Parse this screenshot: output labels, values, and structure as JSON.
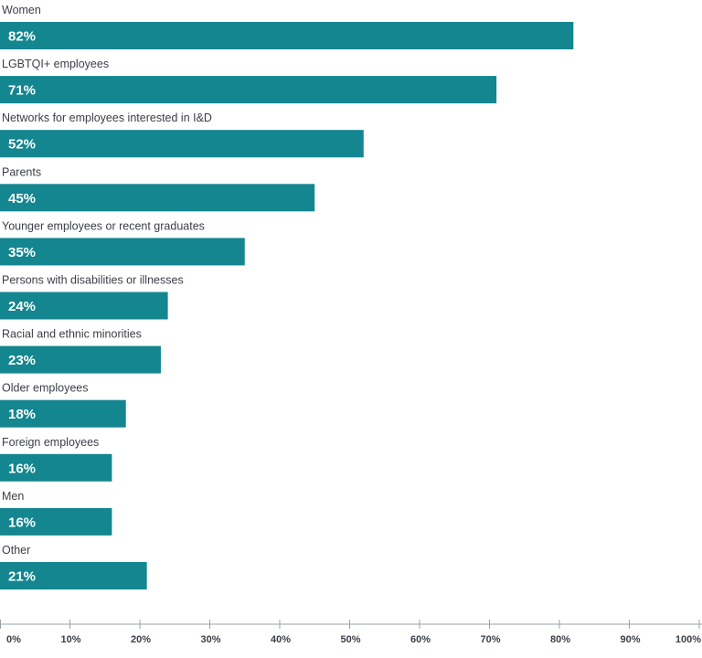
{
  "chart_data": {
    "type": "bar",
    "orientation": "horizontal",
    "categories": [
      "Women",
      "LGBTQI+ employees",
      "Networks for employees interested in I&D",
      "Parents",
      "Younger employees or recent graduates",
      "Persons with disabilities or illnesses",
      "Racial and ethnic minorities",
      "Older employees",
      "Foreign employees",
      "Men",
      "Other"
    ],
    "values": [
      82,
      71,
      52,
      45,
      35,
      24,
      23,
      18,
      16,
      16,
      21
    ],
    "value_labels": [
      "82%",
      "71%",
      "52%",
      "45%",
      "35%",
      "24%",
      "23%",
      "18%",
      "16%",
      "16%",
      "21%"
    ],
    "xlim": [
      0,
      100
    ],
    "x_ticks": [
      "0%",
      "10%",
      "20%",
      "30%",
      "40%",
      "50%",
      "60%",
      "70%",
      "80%",
      "90%",
      "100%"
    ],
    "grid": false,
    "bar_color": "#14868f",
    "value_label_color": "#ffffff",
    "text_color": "#3a3f47",
    "axis_color": "#9aa3ab"
  }
}
